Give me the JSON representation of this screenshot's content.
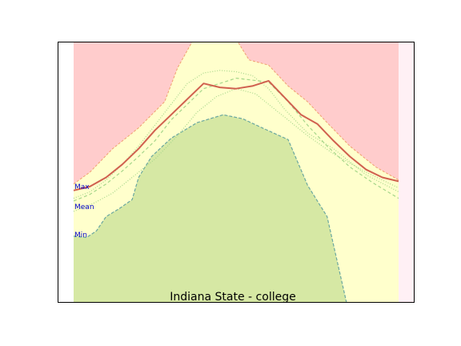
{
  "chart_data": {
    "type": "area",
    "title": "Indiana State - college",
    "xlabel": "",
    "ylabel": "",
    "xlim": [
      0,
      1
    ],
    "ylim": [
      0,
      1
    ],
    "grid": false,
    "legend": "none",
    "colors": {
      "upper_region": "#ffcccc",
      "middle_band": "#ffffcc",
      "lower_region": "#d6e8a4",
      "right_strip": "#fff0f5",
      "mean_line": "#d0604f",
      "upper_edge": "#f0a070",
      "lower_edge": "#6aa7a0",
      "dotted": "#a6d68a",
      "dashed": "#a6d68a",
      "label": "#0000cc"
    },
    "left_labels": [
      {
        "text": "Max",
        "y": 0.445
      },
      {
        "text": "Mean",
        "y": 0.368
      },
      {
        "text": "Min",
        "y": 0.26
      }
    ],
    "series": [
      {
        "role": "upper_boundary",
        "x": [
          0,
          0.05,
          0.12,
          0.2,
          0.28,
          0.32,
          0.365,
          0.42,
          0.505,
          0.54,
          0.6,
          0.66,
          0.72,
          0.78,
          0.85,
          0.93,
          1
        ],
        "y": [
          0.455,
          0.5,
          0.59,
          0.67,
          0.77,
          0.9,
          1.0,
          1.0,
          1.0,
          0.93,
          0.91,
          0.83,
          0.77,
          0.69,
          0.6,
          0.52,
          0.47
        ]
      },
      {
        "role": "lower_boundary",
        "x": [
          0,
          0.04,
          0.07,
          0.1,
          0.14,
          0.18,
          0.2,
          0.24,
          0.3,
          0.38,
          0.46,
          0.52,
          0.58,
          0.66,
          0.72,
          0.78,
          0.84
        ],
        "y": [
          0.255,
          0.25,
          0.275,
          0.33,
          0.36,
          0.395,
          0.48,
          0.56,
          0.63,
          0.69,
          0.72,
          0.705,
          0.67,
          0.625,
          0.45,
          0.33,
          0.0
        ]
      },
      {
        "role": "mean_curve",
        "x": [
          0,
          0.05,
          0.1,
          0.15,
          0.2,
          0.25,
          0.3,
          0.35,
          0.4,
          0.45,
          0.5,
          0.55,
          0.6,
          0.65,
          0.7,
          0.75,
          0.8,
          0.85,
          0.9,
          0.95,
          1
        ],
        "y": [
          0.43,
          0.445,
          0.48,
          0.53,
          0.59,
          0.66,
          0.72,
          0.78,
          0.84,
          0.825,
          0.82,
          0.83,
          0.85,
          0.785,
          0.72,
          0.685,
          0.62,
          0.56,
          0.51,
          0.48,
          0.465
        ]
      },
      {
        "role": "dashed_line",
        "x": [
          0,
          0.05,
          0.1,
          0.15,
          0.2,
          0.25,
          0.3,
          0.35,
          0.4,
          0.5,
          0.6,
          0.66,
          0.72,
          0.78,
          0.85,
          0.92,
          1
        ],
        "y": [
          0.39,
          0.415,
          0.455,
          0.505,
          0.56,
          0.62,
          0.7,
          0.76,
          0.82,
          0.86,
          0.845,
          0.77,
          0.68,
          0.6,
          0.52,
          0.46,
          0.4
        ]
      },
      {
        "role": "dotted_line",
        "x": [
          0,
          0.05,
          0.1,
          0.15,
          0.2,
          0.25,
          0.3,
          0.35,
          0.4,
          0.45,
          0.5,
          0.55,
          0.6,
          0.65,
          0.72,
          0.8,
          0.9,
          1
        ],
        "y": [
          0.4,
          0.425,
          0.47,
          0.53,
          0.6,
          0.68,
          0.76,
          0.84,
          0.88,
          0.89,
          0.885,
          0.87,
          0.82,
          0.74,
          0.65,
          0.59,
          0.49,
          0.425
        ]
      },
      {
        "role": "dotted_line_2",
        "x": [
          0,
          0.06,
          0.12,
          0.18,
          0.25,
          0.32,
          0.38,
          0.44,
          0.5,
          0.56,
          0.6,
          0.66,
          0.72,
          0.8,
          0.9,
          1
        ],
        "y": [
          0.35,
          0.38,
          0.42,
          0.48,
          0.55,
          0.64,
          0.73,
          0.79,
          0.82,
          0.8,
          0.76,
          0.7,
          0.64,
          0.57,
          0.5,
          0.44
        ]
      }
    ]
  }
}
